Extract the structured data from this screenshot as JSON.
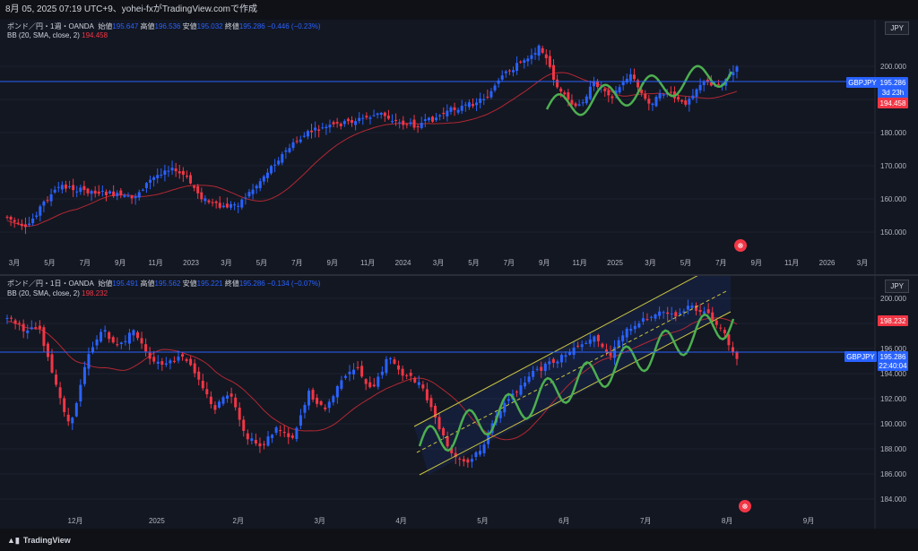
{
  "header": {
    "text": "8月 05, 2025 07:19 UTC+9、yohei-fxがTradingView.comで作成"
  },
  "pane1": {
    "legend": {
      "symbol": "ポンド／円・1週・OANDA",
      "open_label": "始値",
      "open": "195.647",
      "high_label": "高値",
      "high": "196.536",
      "low_label": "安値",
      "low": "195.032",
      "close_label": "終値",
      "close": "195.286",
      "change": "−0.446 (−0.23%)"
    },
    "bb": {
      "label": "BB (20, SMA, close, 2)",
      "value": "194.458"
    },
    "currency": "JPY",
    "price_ticks": [
      "200.000",
      "190.000",
      "180.000",
      "170.000",
      "160.000",
      "150.000"
    ],
    "price_label": {
      "symbol": "GBPJPY",
      "price": "195.286",
      "countdown": "3d 23h"
    },
    "bb_label": "194.458",
    "time_ticks": [
      "3月",
      "5月",
      "7月",
      "9月",
      "11月",
      "2023",
      "3月",
      "5月",
      "7月",
      "9月",
      "11月",
      "2024",
      "3月",
      "5月",
      "7月",
      "9月",
      "11月",
      "2025",
      "3月",
      "5月",
      "7月",
      "9月",
      "11月",
      "2026",
      "3月"
    ]
  },
  "pane2": {
    "legend": {
      "symbol": "ポンド／円・1日・OANDA",
      "open_label": "始値",
      "open": "195.491",
      "high_label": "高値",
      "high": "195.562",
      "low_label": "安値",
      "low": "195.221",
      "close_label": "終値",
      "close": "195.286",
      "change": "−0.134 (−0.07%)"
    },
    "bb": {
      "label": "BB (20, SMA, close, 2)",
      "value": "198.232"
    },
    "currency": "JPY",
    "price_ticks": [
      "200.000",
      "198.000",
      "196.000",
      "194.000",
      "192.000",
      "190.000",
      "188.000",
      "186.000",
      "184.000"
    ],
    "price_label": {
      "symbol": "GBPJPY",
      "price": "195.286",
      "countdown": "22:40:04"
    },
    "bb_label": "198.232",
    "time_ticks": [
      "12月",
      "2025",
      "2月",
      "3月",
      "4月",
      "5月",
      "6月",
      "7月",
      "8月",
      "9月"
    ]
  },
  "footer": {
    "brand": "TradingView"
  },
  "colors": {
    "up": "#2962ff",
    "down": "#f23645",
    "bb": "#b22833",
    "price_line": "#2962ff",
    "channel": "#c9c440",
    "wave": "#4caf50"
  }
}
